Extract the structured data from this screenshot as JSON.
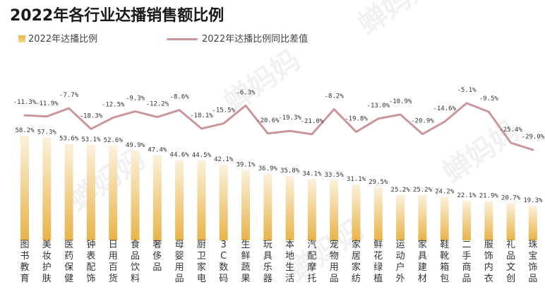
{
  "title": "2022年各行业达播销售额比例",
  "colors": {
    "bar_top": "#e8b44a",
    "bar_bottom": "#fbf1dc",
    "line": "#c9979b"
  },
  "chart_data": {
    "type": "bar+line",
    "title": "2022年各行业达播销售额比例",
    "legend_position": "top-left",
    "grid": false,
    "categories": [
      "图书教育",
      "美妆护肤",
      "医药保健",
      "钟表配饰",
      "日用百货",
      "食品饮料",
      "奢侈品",
      "母婴用品",
      "厨卫家电",
      "3C数码",
      "生鲜蔬果",
      "玩具乐器",
      "本地生活",
      "汽配摩托",
      "宠物用品",
      "家居家纺",
      "鲜花绿植",
      "运动户外",
      "家具建材",
      "鞋靴箱包",
      "二手商品",
      "服饰内衣",
      "礼品文创",
      "珠宝饰品"
    ],
    "series": [
      {
        "name": "2022年达播比例",
        "type": "bar",
        "values": [
          58.2,
          57.3,
          53.6,
          53.1,
          52.6,
          49.9,
          47.4,
          44.6,
          44.5,
          42.1,
          39.1,
          36.9,
          35.8,
          34.1,
          33.5,
          31.1,
          29.5,
          25.2,
          25.2,
          24.2,
          22.1,
          21.9,
          20.7,
          19.3
        ],
        "labels": [
          "58.2%",
          "57.3%",
          "53.6%",
          "53.1%",
          "52.6%",
          "49.9%",
          "47.4%",
          "44.6%",
          "44.5%",
          "42.1%",
          "39.1%",
          "36.9%",
          "35.8%",
          "34.1%",
          "33.5%",
          "31.1%",
          "29.5%",
          "25.2%",
          "25.2%",
          "24.2%",
          "22.1%",
          "21.9%",
          "20.7%",
          "19.3%"
        ]
      },
      {
        "name": "2022年达播比例同比差值",
        "type": "line",
        "values": [
          -11.3,
          -11.9,
          -7.7,
          -18.3,
          -12.5,
          -9.3,
          -12.2,
          -8.6,
          -18.1,
          -15.5,
          -6.3,
          -20.6,
          -19.3,
          -21.0,
          -8.2,
          -19.8,
          -13.0,
          -10.9,
          -20.9,
          -14.6,
          -5.1,
          -9.5,
          -25.4,
          -29.0
        ],
        "labels": [
          "-11.3%",
          "-11.9%",
          "-7.7%",
          "-18.3%",
          "-12.5%",
          "-9.3%",
          "-12.2%",
          "-8.6%",
          "-18.1%",
          "-15.5%",
          "-6.3%",
          "-20.6%",
          "-19.3%",
          "-21.0%",
          "-8.2%",
          "-19.8%",
          "-13.0%",
          "-10.9%",
          "-20.9%",
          "-14.6%",
          "-5.1%",
          "-9.5%",
          "-25.4%",
          "-29.0%"
        ]
      }
    ],
    "bar_ylim": [
      0,
      80
    ],
    "line_ylim": [
      -55,
      10
    ]
  }
}
